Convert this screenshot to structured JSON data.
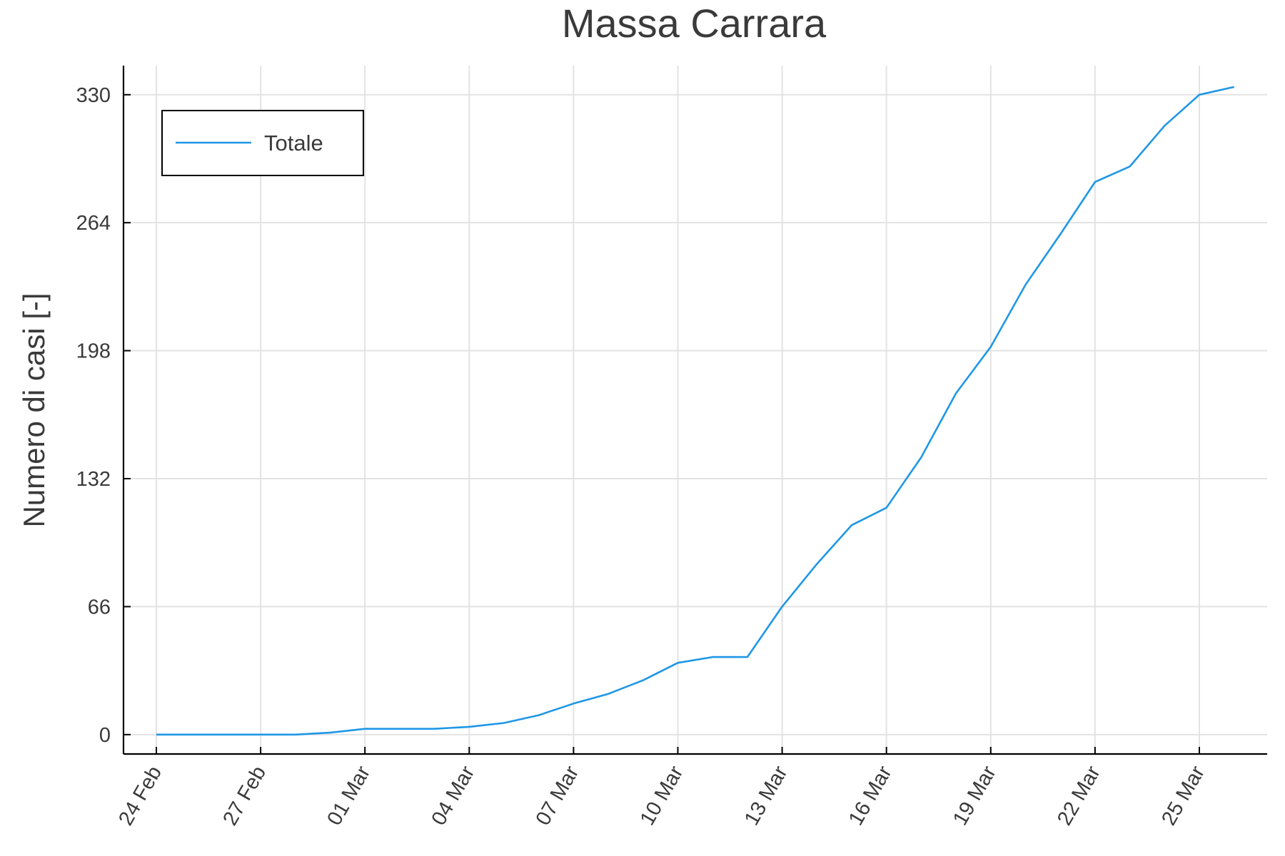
{
  "chart_data": {
    "type": "line",
    "title": "Massa Carrara",
    "xlabel": "",
    "ylabel": "Numero di casi [-]",
    "x_ticks": [
      "24 Feb",
      "27 Feb",
      "01 Mar",
      "04 Mar",
      "07 Mar",
      "10 Mar",
      "13 Mar",
      "16 Mar",
      "19 Mar",
      "22 Mar",
      "25 Mar"
    ],
    "y_ticks": [
      0,
      66,
      132,
      198,
      264,
      330
    ],
    "ylim": [
      -10,
      345
    ],
    "grid": true,
    "legend_position": "top-left",
    "colors": {
      "series": "#1f97e6",
      "grid": "#e3e3e3",
      "text": "#3a3a3a"
    },
    "series": [
      {
        "name": "Totale",
        "x": [
          "24 Feb",
          "25 Feb",
          "26 Feb",
          "27 Feb",
          "28 Feb",
          "29 Feb",
          "01 Mar",
          "02 Mar",
          "03 Mar",
          "04 Mar",
          "05 Mar",
          "06 Mar",
          "07 Mar",
          "08 Mar",
          "09 Mar",
          "10 Mar",
          "11 Mar",
          "12 Mar",
          "13 Mar",
          "14 Mar",
          "15 Mar",
          "16 Mar",
          "17 Mar",
          "18 Mar",
          "19 Mar",
          "20 Mar",
          "21 Mar",
          "22 Mar",
          "23 Mar",
          "24 Mar",
          "25 Mar",
          "26 Mar"
        ],
        "values": [
          0,
          0,
          0,
          0,
          0,
          1,
          3,
          3,
          3,
          4,
          6,
          10,
          16,
          21,
          28,
          37,
          40,
          40,
          66,
          88,
          108,
          117,
          143,
          176,
          200,
          232,
          258,
          285,
          293,
          314,
          330,
          334
        ]
      }
    ]
  }
}
